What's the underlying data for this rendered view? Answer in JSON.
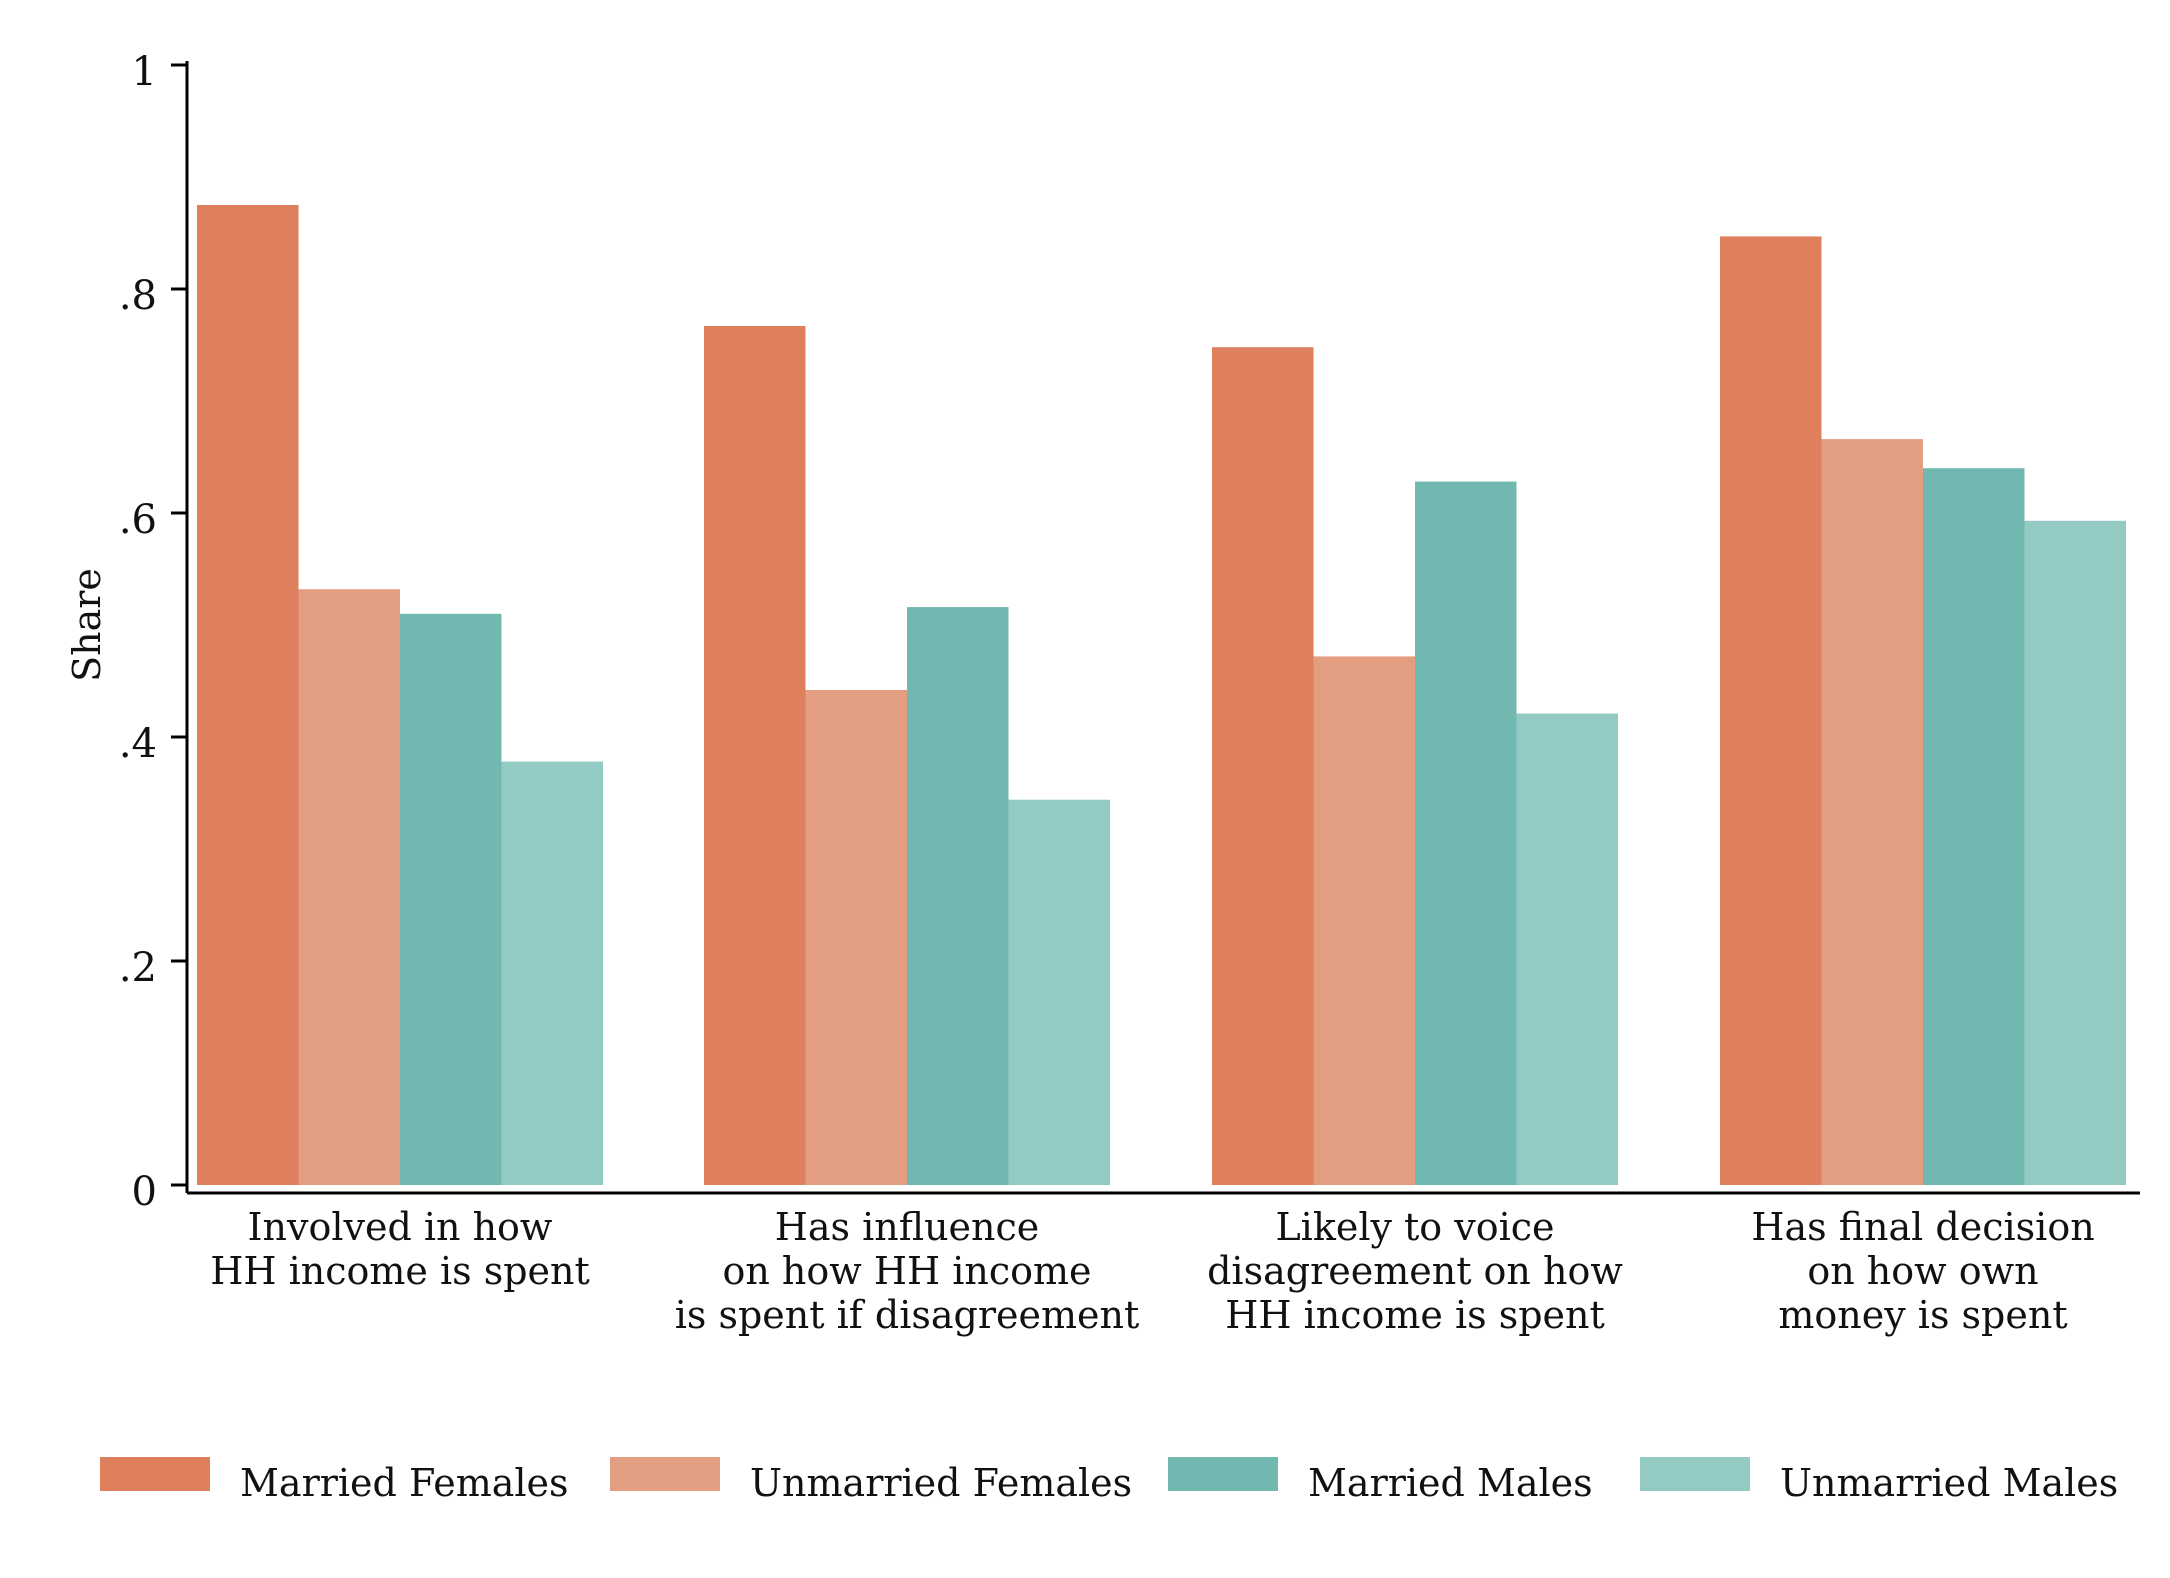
{
  "chart_data": {
    "type": "bar",
    "ylabel": "Share",
    "ylim": [
      0,
      1
    ],
    "yticks": [
      0,
      0.2,
      0.4,
      0.6,
      0.8,
      1
    ],
    "ytick_labels": [
      "0",
      ".2",
      ".4",
      ".6",
      ".8",
      "1"
    ],
    "grid": false,
    "legend_position": "bottom",
    "categories": [
      [
        "Involved in how",
        "HH income is spent"
      ],
      [
        "Has influence",
        "on how HH income",
        "is spent if disagreement"
      ],
      [
        "Likely to voice",
        "disagreement on how",
        "HH income is spent"
      ],
      [
        "Has final decision",
        "on how own",
        "money is spent"
      ]
    ],
    "series": [
      {
        "name": "Married Females",
        "color": "#de7f5d",
        "values": [
          0.875,
          0.767,
          0.748,
          0.847
        ]
      },
      {
        "name": "Unmarried Females",
        "color": "#e39e81",
        "values": [
          0.532,
          0.442,
          0.472,
          0.666
        ]
      },
      {
        "name": "Married Males",
        "color": "#71b9b0",
        "values": [
          0.51,
          0.516,
          0.628,
          0.64
        ]
      },
      {
        "name": "Unmarried Males",
        "color": "#93cac3",
        "values": [
          0.378,
          0.344,
          0.421,
          0.593
        ]
      }
    ]
  }
}
